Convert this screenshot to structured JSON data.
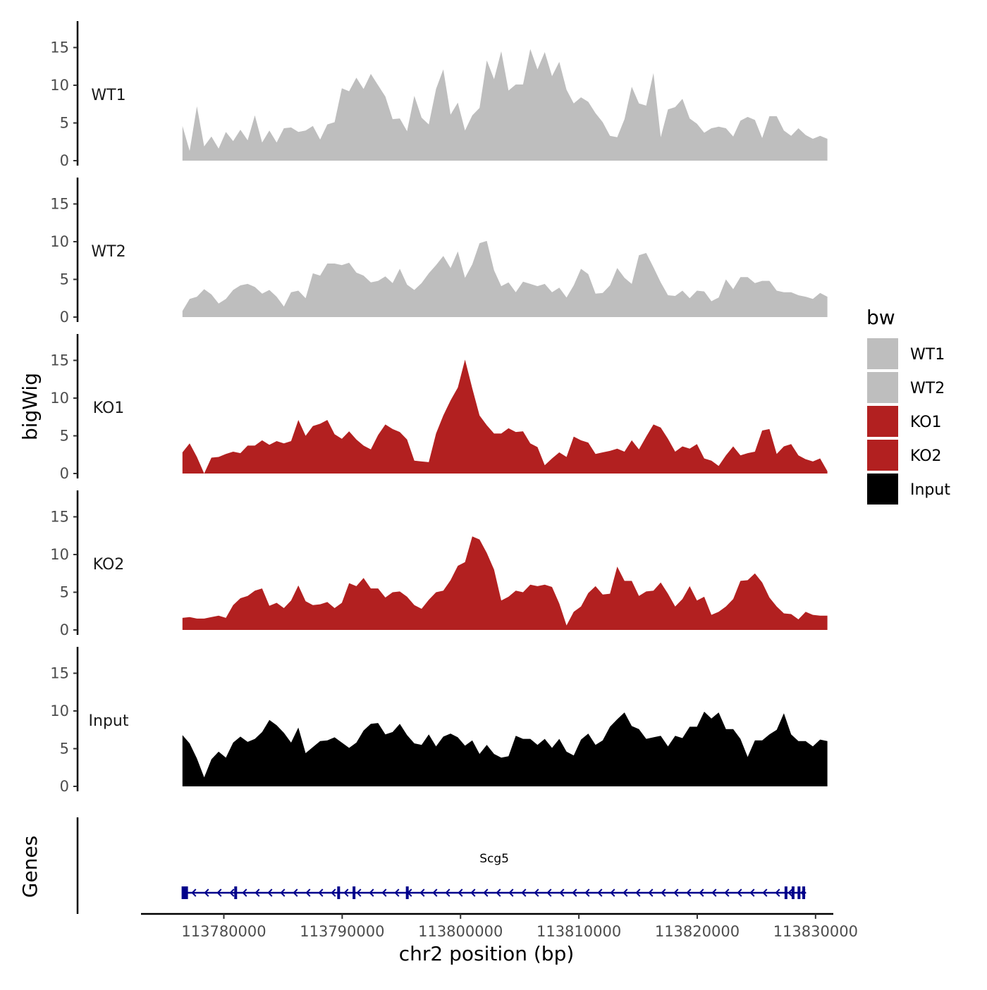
{
  "colors": {
    "WT1": "#bebebe",
    "WT2": "#bebebe",
    "KO1": "#b22020",
    "KO2": "#b22020",
    "Input": "#000000",
    "gene": "#00008b",
    "axis": "#000000"
  },
  "chart_data": {
    "type": "area",
    "title": "",
    "xlabel": "chr2 position (bp)",
    "ylabel": "bigWig",
    "lower_panel_label": "Genes",
    "xlim": [
      113773000,
      113831500
    ],
    "data_range": [
      113776500,
      113831000
    ],
    "ylim": [
      0,
      18.5
    ],
    "y_ticks": [
      0,
      5,
      10,
      15
    ],
    "x_ticks": [
      113780000,
      113790000,
      113800000,
      113810000,
      113820000,
      113830000
    ],
    "x_tick_labels": [
      "113780000",
      "113790000",
      "113800000",
      "113810000",
      "113820000",
      "113830000"
    ],
    "legend": {
      "title": "bw",
      "position": "right",
      "entries": [
        "WT1",
        "WT2",
        "KO1",
        "KO2",
        "Input"
      ]
    },
    "series": [
      {
        "name": "WT1",
        "values": [
          4.6,
          1.3,
          7.2,
          1.9,
          3.2,
          1.6,
          3.8,
          2.6,
          4.1,
          2.7,
          6.0,
          2.4,
          4.0,
          2.4,
          4.3,
          4.4,
          3.8,
          4.0,
          4.6,
          2.8,
          4.8,
          5.1,
          9.6,
          9.2,
          11.0,
          9.5,
          11.5,
          10.0,
          8.5,
          5.5,
          5.6,
          3.9,
          8.6,
          5.7,
          4.8,
          9.5,
          12.1,
          6.1,
          7.7,
          4.0,
          6.0,
          7.0,
          13.3,
          10.8,
          14.5,
          9.3,
          10.1,
          10.1,
          14.8,
          12.1,
          14.4,
          11.2,
          13.1,
          9.4,
          7.6,
          8.4,
          7.8,
          6.3,
          5.1,
          3.3,
          3.1,
          5.5,
          9.8,
          7.6,
          7.3,
          11.6,
          3.1,
          6.8,
          7.1,
          8.2,
          5.6,
          4.9,
          3.7,
          4.3,
          4.5,
          4.3,
          3.2,
          5.3,
          5.8,
          5.4,
          3.0,
          5.9,
          5.9,
          4.0,
          3.3,
          4.3,
          3.4,
          2.9,
          3.3,
          2.9
        ]
      },
      {
        "name": "WT2",
        "values": [
          0.8,
          2.4,
          2.7,
          3.7,
          3.0,
          1.8,
          2.4,
          3.6,
          4.2,
          4.4,
          4.0,
          3.1,
          3.6,
          2.7,
          1.4,
          3.3,
          3.5,
          2.5,
          5.8,
          5.5,
          7.1,
          7.1,
          6.9,
          7.2,
          5.9,
          5.5,
          4.6,
          4.8,
          5.4,
          4.5,
          6.4,
          4.3,
          3.6,
          4.5,
          5.8,
          6.9,
          8.1,
          6.5,
          8.7,
          5.2,
          7.0,
          9.8,
          10.1,
          6.2,
          4.1,
          4.6,
          3.3,
          4.7,
          4.4,
          4.1,
          4.4,
          3.3,
          3.9,
          2.6,
          4.2,
          6.4,
          5.7,
          3.1,
          3.2,
          4.2,
          6.5,
          5.2,
          4.4,
          8.2,
          8.5,
          6.6,
          4.6,
          2.9,
          2.8,
          3.5,
          2.5,
          3.5,
          3.4,
          2.1,
          2.6,
          5.0,
          3.7,
          5.3,
          5.3,
          4.5,
          4.8,
          4.8,
          3.5,
          3.3,
          3.3,
          2.9,
          2.7,
          2.4,
          3.2,
          2.7
        ]
      },
      {
        "name": "KO1",
        "values": [
          2.8,
          4.0,
          2.2,
          0,
          2.1,
          2.2,
          2.6,
          2.9,
          2.7,
          3.7,
          3.7,
          4.4,
          3.8,
          4.3,
          4.0,
          4.3,
          7.1,
          5.0,
          6.3,
          6.6,
          7.1,
          5.2,
          4.6,
          5.6,
          4.5,
          3.7,
          3.2,
          5.1,
          6.5,
          5.9,
          5.5,
          4.5,
          1.7,
          1.6,
          1.5,
          5.3,
          7.7,
          9.7,
          11.4,
          15.1,
          11.3,
          7.7,
          6.4,
          5.3,
          5.3,
          6.0,
          5.5,
          5.6,
          4.0,
          3.5,
          1.1,
          2.0,
          2.8,
          2.2,
          4.9,
          4.4,
          4.1,
          2.6,
          2.8,
          3.0,
          3.3,
          2.9,
          4.4,
          3.2,
          4.9,
          6.5,
          6.1,
          4.6,
          2.9,
          3.6,
          3.3,
          3.9,
          2.0,
          1.7,
          1.0,
          2.4,
          3.6,
          2.4,
          2.7,
          2.9,
          5.7,
          5.9,
          2.6,
          3.6,
          3.9,
          2.4,
          1.9,
          1.6,
          2.0,
          0.3
        ]
      },
      {
        "name": "KO2",
        "values": [
          1.6,
          1.7,
          1.5,
          1.5,
          1.7,
          1.9,
          1.6,
          3.3,
          4.2,
          4.5,
          5.2,
          5.5,
          3.2,
          3.6,
          2.9,
          3.9,
          5.9,
          3.8,
          3.3,
          3.4,
          3.7,
          2.9,
          3.6,
          6.2,
          5.8,
          6.9,
          5.5,
          5.5,
          4.3,
          5.0,
          5.1,
          4.4,
          3.3,
          2.8,
          4.0,
          5.0,
          5.2,
          6.6,
          8.5,
          9.0,
          12.4,
          12.0,
          10.2,
          8.0,
          3.9,
          4.4,
          5.2,
          5.0,
          6.0,
          5.8,
          6.0,
          5.7,
          3.5,
          0.6,
          2.4,
          3.1,
          4.9,
          5.8,
          4.7,
          4.8,
          8.4,
          6.5,
          6.5,
          4.5,
          5.1,
          5.2,
          6.3,
          4.8,
          3.1,
          4.1,
          5.8,
          3.9,
          4.4,
          2.0,
          2.4,
          3.1,
          4.1,
          6.5,
          6.6,
          7.5,
          6.3,
          4.3,
          3.1,
          2.2,
          2.1,
          1.4,
          2.4,
          2.0,
          1.9,
          1.9
        ]
      },
      {
        "name": "Input",
        "values": [
          6.8,
          5.7,
          3.7,
          1.2,
          3.6,
          4.6,
          3.8,
          5.8,
          6.6,
          5.9,
          6.3,
          7.2,
          8.8,
          8.1,
          7.1,
          5.8,
          7.8,
          4.4,
          5.2,
          6.0,
          6.1,
          6.5,
          5.8,
          5.1,
          5.8,
          7.4,
          8.3,
          8.4,
          6.9,
          7.2,
          8.3,
          6.8,
          5.7,
          5.5,
          6.9,
          5.3,
          6.6,
          7.0,
          6.5,
          5.4,
          6.1,
          4.3,
          5.5,
          4.3,
          3.8,
          4.0,
          6.7,
          6.3,
          6.3,
          5.5,
          6.3,
          5.1,
          6.3,
          4.6,
          4.1,
          6.2,
          7.0,
          5.5,
          6.1,
          7.9,
          8.9,
          9.8,
          8.0,
          7.6,
          6.3,
          6.5,
          6.7,
          5.3,
          6.7,
          6.4,
          7.9,
          7.9,
          9.9,
          9.0,
          9.8,
          7.6,
          7.6,
          6.3,
          3.9,
          6.1,
          6.1,
          6.9,
          7.5,
          9.7,
          6.9,
          6.0,
          6.0,
          5.3,
          6.2,
          6.0
        ]
      }
    ],
    "gene": {
      "name": "Scg5",
      "start": 113776500,
      "end": 113829200,
      "strand": "-",
      "exons": [
        113776700,
        113781000,
        113789700,
        113791000,
        113795500,
        113827500,
        113828100,
        113828600,
        113829000
      ]
    }
  }
}
